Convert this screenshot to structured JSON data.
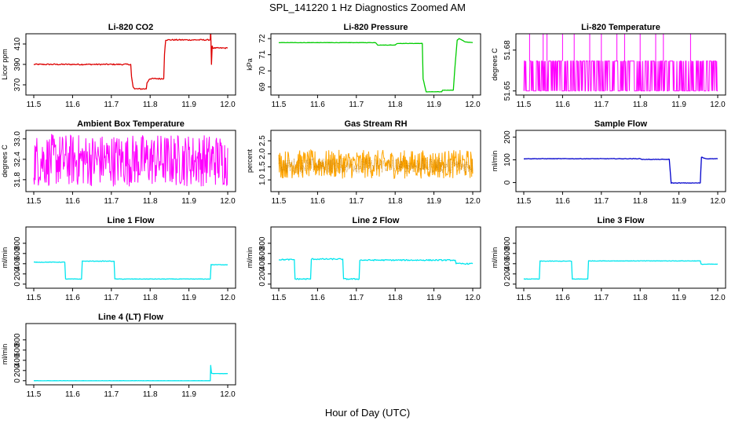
{
  "figure": {
    "title": "SPL_141220  1 Hz Diagnostics Zoomed AM",
    "xlabel": "Hour of Day (UTC)"
  },
  "chart_data": [
    {
      "type": "line",
      "title": "Li-820 CO2",
      "ylabel": "Licor ppm",
      "color": "#dd0000",
      "xlim": [
        11.5,
        12.0
      ],
      "ylim": [
        360,
        420
      ],
      "xticks": [
        11.5,
        11.6,
        11.7,
        11.8,
        11.9,
        12.0
      ],
      "xtick_labels": [
        "11.5",
        "11.6",
        "11.7",
        "11.8",
        "11.9",
        "12.0"
      ],
      "yticks": [
        370,
        390,
        410
      ],
      "ytick_labels": [
        "370",
        "390",
        "410"
      ],
      "series": [
        {
          "x": [
            11.5,
            11.75,
            11.752,
            11.756,
            11.76,
            11.79,
            11.792,
            11.797,
            11.8,
            11.835,
            11.837,
            11.84,
            11.955,
            11.956,
            11.958,
            11.96,
            11.962,
            11.97,
            12.0
          ],
          "y": [
            390,
            390,
            378,
            368,
            366,
            366,
            372,
            375,
            376,
            376,
            400,
            414,
            414,
            425,
            390,
            408,
            406,
            406,
            406
          ],
          "noise": 0.6
        }
      ]
    },
    {
      "type": "line",
      "title": "Li-820 Pressure",
      "ylabel": "kPa",
      "color": "#00cc00",
      "xlim": [
        11.5,
        12.0
      ],
      "ylim": [
        68.5,
        72.3
      ],
      "xticks": [
        11.5,
        11.6,
        11.7,
        11.8,
        11.9,
        12.0
      ],
      "xtick_labels": [
        "11.5",
        "11.6",
        "11.7",
        "11.8",
        "11.9",
        "12.0"
      ],
      "yticks": [
        69,
        70,
        71,
        72
      ],
      "ytick_labels": [
        "69",
        "70",
        "71",
        "72"
      ],
      "series": [
        {
          "x": [
            11.5,
            11.75,
            11.755,
            11.8,
            11.805,
            11.87,
            11.872,
            11.88,
            11.92,
            11.922,
            11.95,
            11.955,
            11.96,
            11.965,
            11.98,
            12.0
          ],
          "y": [
            71.75,
            71.75,
            71.6,
            71.6,
            71.7,
            71.7,
            69.5,
            68.7,
            68.7,
            68.8,
            68.8,
            70.5,
            71.9,
            72.0,
            71.8,
            71.75
          ],
          "noise": 0.01
        }
      ]
    },
    {
      "type": "line",
      "title": "Li-820 Temperature",
      "ylabel": "degrees C",
      "color": "#ff00ff",
      "xlim": [
        11.5,
        12.0
      ],
      "ylim": [
        51.647,
        51.692
      ],
      "xticks": [
        11.5,
        11.6,
        11.7,
        11.8,
        11.9,
        12.0
      ],
      "xtick_labels": [
        "11.5",
        "11.6",
        "11.7",
        "11.8",
        "11.9",
        "12.0"
      ],
      "yticks": [
        51.65,
        51.68
      ],
      "ytick_labels": [
        "51.65",
        "51.68"
      ],
      "series": [
        {
          "x": [
            11.5,
            12.0
          ],
          "y": [
            51.65,
            51.65
          ],
          "band": [
            51.65,
            51.672
          ],
          "noise": 0
        }
      ]
    },
    {
      "type": "line",
      "title": "Ambient Box Temperature",
      "ylabel": "degrees C",
      "color": "#ff00ff",
      "xlim": [
        11.5,
        12.0
      ],
      "ylim": [
        31.45,
        33.25
      ],
      "xticks": [
        11.5,
        11.6,
        11.7,
        11.8,
        11.9,
        12.0
      ],
      "xtick_labels": [
        "11.5",
        "11.6",
        "11.7",
        "11.8",
        "11.9",
        "12.0"
      ],
      "yticks": [
        31.8,
        32.4,
        33.0
      ],
      "ytick_labels": [
        "31.8",
        "32.4",
        "33.0"
      ],
      "series": [
        {
          "x": [
            11.5,
            12.0
          ],
          "y": [
            32.3,
            32.3
          ],
          "band": [
            31.6,
            33.15
          ],
          "noise": 0
        }
      ]
    },
    {
      "type": "line",
      "title": "Gas Stream RH",
      "ylabel": "percent",
      "color": "#ffa500",
      "xlim": [
        11.5,
        12.0
      ],
      "ylim": [
        0.55,
        2.9
      ],
      "xticks": [
        11.5,
        11.6,
        11.7,
        11.8,
        11.9,
        12.0
      ],
      "xtick_labels": [
        "11.5",
        "11.6",
        "11.7",
        "11.8",
        "11.9",
        "12.0"
      ],
      "yticks": [
        1.0,
        1.5,
        2.0,
        2.5
      ],
      "ytick_labels": [
        "1.0",
        "1.5",
        "2.0",
        "2.5"
      ],
      "series": [
        {
          "x": [
            11.5,
            12.0
          ],
          "y": [
            1.55,
            1.55
          ],
          "band": [
            1.05,
            2.15
          ],
          "noise": 0
        }
      ]
    },
    {
      "type": "line",
      "title": "Sample Flow",
      "ylabel": "ml/min",
      "color": "#0000cc",
      "xlim": [
        11.5,
        12.0
      ],
      "ylim": [
        -40,
        230
      ],
      "xticks": [
        11.5,
        11.6,
        11.7,
        11.8,
        11.9,
        12.0
      ],
      "xtick_labels": [
        "11.5",
        "11.6",
        "11.7",
        "11.8",
        "11.9",
        "12.0"
      ],
      "yticks": [
        0,
        100,
        200
      ],
      "ytick_labels": [
        "0",
        "100",
        "200"
      ],
      "series": [
        {
          "x": [
            11.5,
            11.8,
            11.805,
            11.875,
            11.88,
            11.955,
            11.958,
            11.97,
            12.0
          ],
          "y": [
            105,
            105,
            102,
            102,
            -2,
            -2,
            112,
            105,
            105
          ],
          "noise": 1.0
        }
      ]
    },
    {
      "type": "line",
      "title": "Line 1 Flow",
      "ylabel": "ml/min",
      "color": "#00e5ee",
      "xlim": [
        11.5,
        12.0
      ],
      "ylim": [
        -80,
        1120
      ],
      "xticks": [
        11.5,
        11.6,
        11.7,
        11.8,
        11.9,
        12.0
      ],
      "xtick_labels": [
        "11.5",
        "11.6",
        "11.7",
        "11.8",
        "11.9",
        "12.0"
      ],
      "yticks": [
        0,
        200,
        400,
        600,
        800
      ],
      "ytick_labels": [
        "0",
        "200",
        "400",
        "600",
        "800"
      ],
      "series": [
        {
          "x": [
            11.5,
            11.58,
            11.582,
            11.623,
            11.625,
            11.707,
            11.709,
            11.955,
            11.957,
            12.0
          ],
          "y": [
            430,
            430,
            100,
            100,
            450,
            450,
            100,
            100,
            380,
            380
          ],
          "noise": 5
        }
      ]
    },
    {
      "type": "line",
      "title": "Line 2 Flow",
      "ylabel": "ml/min",
      "color": "#00e5ee",
      "xlim": [
        11.5,
        12.0
      ],
      "ylim": [
        -80,
        1120
      ],
      "xticks": [
        11.5,
        11.6,
        11.7,
        11.8,
        11.9,
        12.0
      ],
      "xtick_labels": [
        "11.5",
        "11.6",
        "11.7",
        "11.8",
        "11.9",
        "12.0"
      ],
      "yticks": [
        0,
        200,
        400,
        600,
        800
      ],
      "ytick_labels": [
        "0",
        "200",
        "400",
        "600",
        "800"
      ],
      "series": [
        {
          "x": [
            11.5,
            11.54,
            11.542,
            11.582,
            11.584,
            11.665,
            11.667,
            11.707,
            11.709,
            11.955,
            11.957,
            12.0
          ],
          "y": [
            480,
            480,
            100,
            100,
            490,
            490,
            100,
            100,
            470,
            470,
            400,
            400
          ],
          "noise": 12
        }
      ]
    },
    {
      "type": "line",
      "title": "Line 3 Flow",
      "ylabel": "ml/min",
      "color": "#00e5ee",
      "xlim": [
        11.5,
        12.0
      ],
      "ylim": [
        -80,
        1120
      ],
      "xticks": [
        11.5,
        11.6,
        11.7,
        11.8,
        11.9,
        12.0
      ],
      "xtick_labels": [
        "11.5",
        "11.6",
        "11.7",
        "11.8",
        "11.9",
        "12.0"
      ],
      "yticks": [
        0,
        200,
        400,
        600,
        800
      ],
      "ytick_labels": [
        "0",
        "200",
        "400",
        "600",
        "800"
      ],
      "series": [
        {
          "x": [
            11.5,
            11.54,
            11.542,
            11.623,
            11.625,
            11.665,
            11.667,
            11.955,
            11.957,
            12.0
          ],
          "y": [
            100,
            100,
            450,
            450,
            100,
            100,
            455,
            455,
            390,
            390
          ],
          "noise": 5
        }
      ]
    },
    {
      "type": "line",
      "title": "Line 4 (LT) Flow",
      "ylabel": "ml/min",
      "color": "#00e5ee",
      "xlim": [
        11.5,
        12.0
      ],
      "ylim": [
        -80,
        1120
      ],
      "xticks": [
        11.5,
        11.6,
        11.7,
        11.8,
        11.9,
        12.0
      ],
      "xtick_labels": [
        "11.5",
        "11.6",
        "11.7",
        "11.8",
        "11.9",
        "12.0"
      ],
      "yticks": [
        0,
        200,
        400,
        600,
        800
      ],
      "ytick_labels": [
        "0",
        "200",
        "400",
        "600",
        "800"
      ],
      "series": [
        {
          "x": [
            11.5,
            11.955,
            11.956,
            11.958,
            11.962,
            12.0
          ],
          "y": [
            0,
            0,
            300,
            150,
            140,
            140
          ],
          "noise": 2
        }
      ]
    }
  ]
}
